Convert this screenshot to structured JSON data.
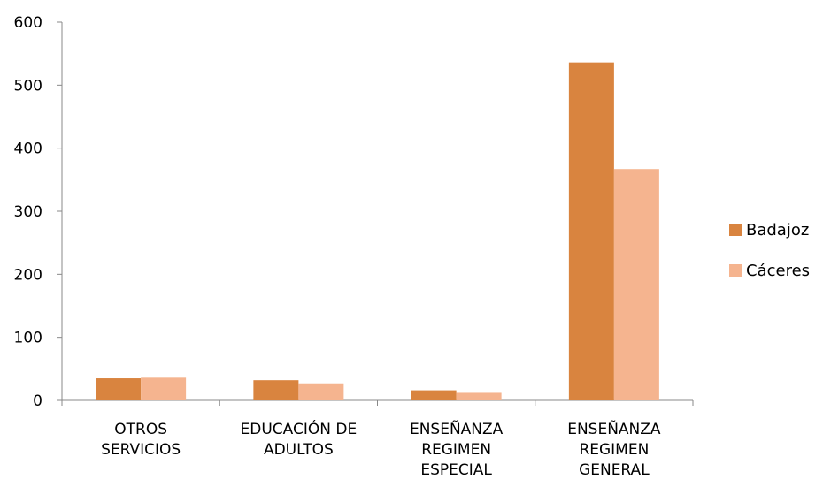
{
  "chart_data": {
    "type": "bar",
    "categories": [
      [
        "OTROS",
        "SERVICIOS"
      ],
      [
        "EDUCACIÓN DE",
        "ADULTOS"
      ],
      [
        "ENSEÑANZA",
        "REGIMEN",
        "ESPECIAL"
      ],
      [
        "ENSEÑANZA",
        "REGIMEN",
        "GENERAL"
      ]
    ],
    "series": [
      {
        "name": "Badajoz",
        "values": [
          35,
          32,
          16,
          536
        ],
        "color": "#d9843f"
      },
      {
        "name": "Cáceres",
        "values": [
          36,
          27,
          12,
          367
        ],
        "color": "#f5b48f"
      }
    ],
    "ylim": [
      0,
      600
    ],
    "yticks": [
      "0",
      "100",
      "200",
      "300",
      "400",
      "500",
      "600"
    ],
    "grid": false,
    "legend_position": "right"
  }
}
